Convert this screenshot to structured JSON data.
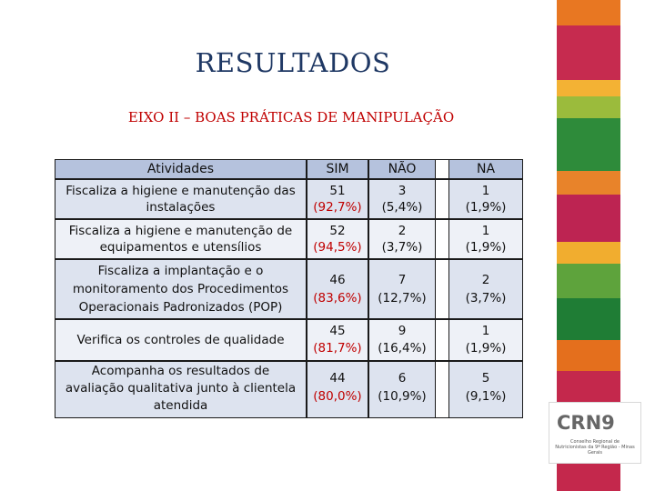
{
  "title": "RESULTADOS",
  "subtitle": "EIXO II – BOAS PRÁTICAS DE MANIPULAÇÃO",
  "table": {
    "headers": [
      "Atividades",
      "SIM",
      "NÃO",
      "NA"
    ],
    "rows": [
      {
        "activity": [
          "Fiscaliza a higiene e manutenção das",
          "instalações"
        ],
        "sim": "51",
        "sim_pct": "(92,7%)",
        "nao": "3",
        "nao_pct": "(5,4%)",
        "na": "1",
        "na_pct": "(1,9%)"
      },
      {
        "activity": [
          "Fiscaliza a higiene e manutenção de",
          "equipamentos e utensílios"
        ],
        "sim": "52",
        "sim_pct": "(94,5%)",
        "nao": "2",
        "nao_pct": "(3,7%)",
        "na": "1",
        "na_pct": "(1,9%)"
      },
      {
        "activity": [
          "Fiscaliza a implantação e o",
          "monitoramento dos Procedimentos",
          "Operacionais Padronizados (POP)"
        ],
        "sim": "46",
        "sim_pct": "(83,6%)",
        "nao": "7",
        "nao_pct": "(12,7%)",
        "na": "2",
        "na_pct": "(3,7%)"
      },
      {
        "activity": [
          "Verifica os controles de qualidade"
        ],
        "sim": "45",
        "sim_pct": "(81,7%)",
        "nao": "9",
        "nao_pct": "(16,4%)",
        "na": "1",
        "na_pct": "(1,9%)"
      },
      {
        "activity": [
          "Acompanha os resultados de",
          "avaliação qualitativa junto à clientela",
          "atendida"
        ],
        "sim": "44",
        "sim_pct": "(80,0%)",
        "nao": "6",
        "nao_pct": "(10,9%)",
        "na": "5",
        "na_pct": "(9,1%)"
      }
    ]
  },
  "logo": {
    "word": "CRN9",
    "sub": "Conselho Regional de Nutricionistas da 9ª Região - Minas Gerais"
  },
  "colors": {
    "title": "#1f3864",
    "subtitle": "#c00000",
    "header_row": "#b5c2dd",
    "row_a": "#dde3ef",
    "row_b": "#eef1f7",
    "percent_text": "#c00000"
  }
}
